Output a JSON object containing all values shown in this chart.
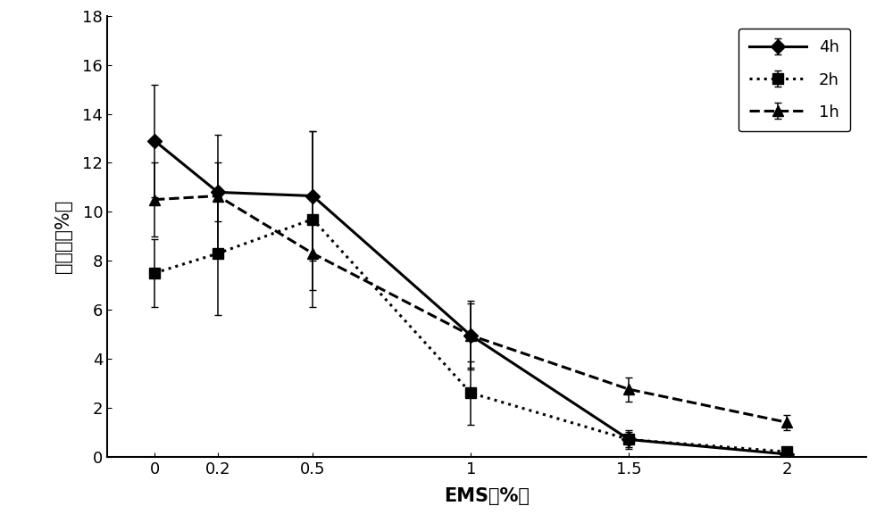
{
  "x": [
    0,
    0.2,
    0.5,
    1,
    1.5,
    2
  ],
  "series": [
    {
      "label": "4h",
      "y": [
        12.9,
        10.8,
        10.65,
        4.95,
        0.7,
        0.1
      ],
      "yerr": [
        2.3,
        1.2,
        2.65,
        1.3,
        0.3,
        0.15
      ],
      "linestyle": "-",
      "marker": "D",
      "markersize": 8,
      "linewidth": 2.2
    },
    {
      "label": "2h",
      "y": [
        7.5,
        8.3,
        9.7,
        2.6,
        0.7,
        0.2
      ],
      "yerr": [
        1.4,
        2.5,
        3.6,
        1.3,
        0.4,
        0.2
      ],
      "linestyle": ":",
      "marker": "s",
      "markersize": 8,
      "linewidth": 2.2
    },
    {
      "label": "1h",
      "y": [
        10.5,
        10.65,
        8.3,
        4.95,
        2.75,
        1.4
      ],
      "yerr": [
        1.5,
        2.5,
        1.5,
        1.4,
        0.5,
        0.3
      ],
      "linestyle": "--",
      "marker": "^",
      "markersize": 8,
      "linewidth": 2.2
    }
  ],
  "xlabel": "EMS（%）",
  "ylabel": "存活率（%）",
  "xlim": [
    -0.15,
    2.25
  ],
  "ylim": [
    0,
    18
  ],
  "yticks": [
    0,
    2,
    4,
    6,
    8,
    10,
    12,
    14,
    16,
    18
  ],
  "xticks": [
    0,
    0.2,
    0.5,
    1,
    1.5,
    2
  ],
  "xticklabels": [
    "0",
    "0.2",
    "0.5",
    "1",
    "1.5",
    "2"
  ],
  "color": "#000000",
  "capsize": 3,
  "legend_fontsize": 13,
  "axis_label_fontsize": 15,
  "tick_fontsize": 13,
  "figure_width": 10.0,
  "figure_height": 5.95
}
